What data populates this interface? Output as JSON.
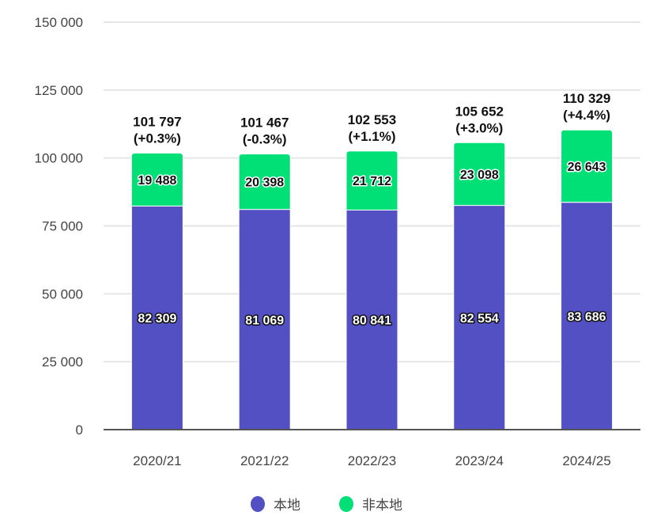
{
  "chart_data": {
    "type": "bar",
    "stacked": true,
    "title": "",
    "xlabel": "",
    "ylabel": "",
    "ylim": [
      0,
      150000
    ],
    "yticks": [
      0,
      25000,
      50000,
      75000,
      100000,
      125000,
      150000
    ],
    "ytick_labels": [
      "0",
      "25 000",
      "50 000",
      "75 000",
      "100 000",
      "125 000",
      "150 000"
    ],
    "grid": true,
    "legend_position": "bottom",
    "categories": [
      "2020/21",
      "2021/22",
      "2022/23",
      "2023/24",
      "2024/25"
    ],
    "series": [
      {
        "name": "本地",
        "color": "#5350c4",
        "values": [
          82309,
          81069,
          80841,
          82554,
          83686
        ],
        "labels": [
          "82 309",
          "81 069",
          "80 841",
          "82 554",
          "83 686"
        ]
      },
      {
        "name": "非本地",
        "color": "#00e077",
        "values": [
          19488,
          20398,
          21712,
          23098,
          26643
        ],
        "labels": [
          "19 488",
          "20 398",
          "21 712",
          "23 098",
          "26 643"
        ]
      }
    ],
    "totals": [
      101797,
      101467,
      102553,
      105652,
      110329
    ],
    "total_labels": [
      "101 797",
      "101 467",
      "102 553",
      "105 652",
      "110 329"
    ],
    "change_labels": [
      "(+0.3%)",
      "(-0.3%)",
      "(+1.1%)",
      "(+3.0%)",
      "(+4.4%)"
    ]
  }
}
